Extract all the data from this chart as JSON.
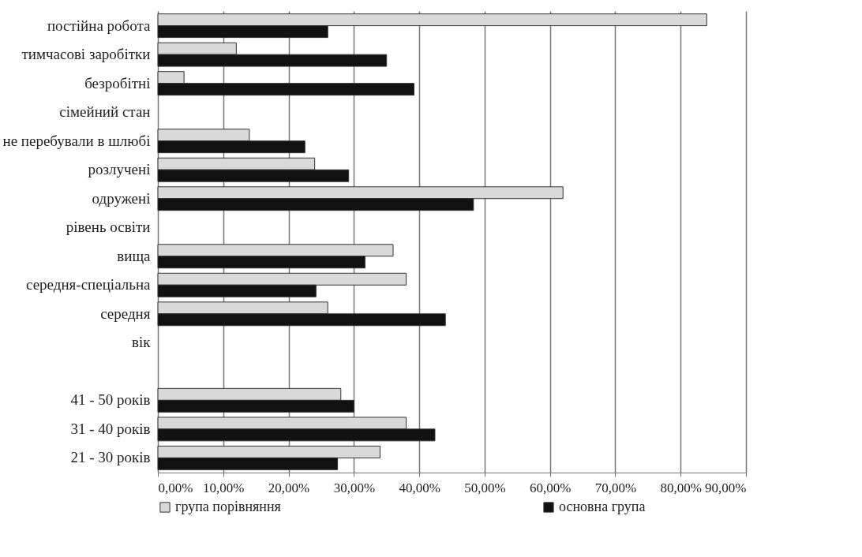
{
  "chart_data": {
    "type": "bar",
    "orientation": "horizontal",
    "categories": [
      "постійна робота",
      "тимчасові заробітки",
      "безробітні",
      "сімейний стан",
      "не перебували в шлюбі",
      "розлучені",
      "одружені",
      "рівень освіти",
      "вища",
      "середня-спеціальна",
      "середня",
      "вік",
      null,
      "41 - 50 років",
      "31 - 40  років",
      "21 - 30 років"
    ],
    "series": [
      {
        "name": "група порівняння",
        "color": "#d9d9d9",
        "values": [
          84,
          12,
          4,
          null,
          14,
          24,
          62,
          null,
          36,
          38,
          26,
          null,
          null,
          28,
          38,
          34
        ]
      },
      {
        "name": "основна група",
        "color": "#111111",
        "values": [
          26,
          35,
          39.2,
          null,
          22.5,
          29.2,
          48.3,
          null,
          31.7,
          24.2,
          44,
          null,
          null,
          30,
          42.4,
          27.5
        ]
      }
    ],
    "xlim": [
      0,
      90
    ],
    "xticks": [
      {
        "value": 0,
        "label": "0,00%"
      },
      {
        "value": 10,
        "label": "10,00%"
      },
      {
        "value": 20,
        "label": "20,00%"
      },
      {
        "value": 30,
        "label": "30,00%"
      },
      {
        "value": 40,
        "label": "40,00%"
      },
      {
        "value": 50,
        "label": "50,00%"
      },
      {
        "value": 60,
        "label": "60,00%"
      },
      {
        "value": 70,
        "label": "70,00%"
      },
      {
        "value": 80,
        "label": "80,00%"
      },
      {
        "value": 90,
        "label": "90,00%"
      }
    ],
    "grid": "x",
    "legend": "bottom"
  }
}
